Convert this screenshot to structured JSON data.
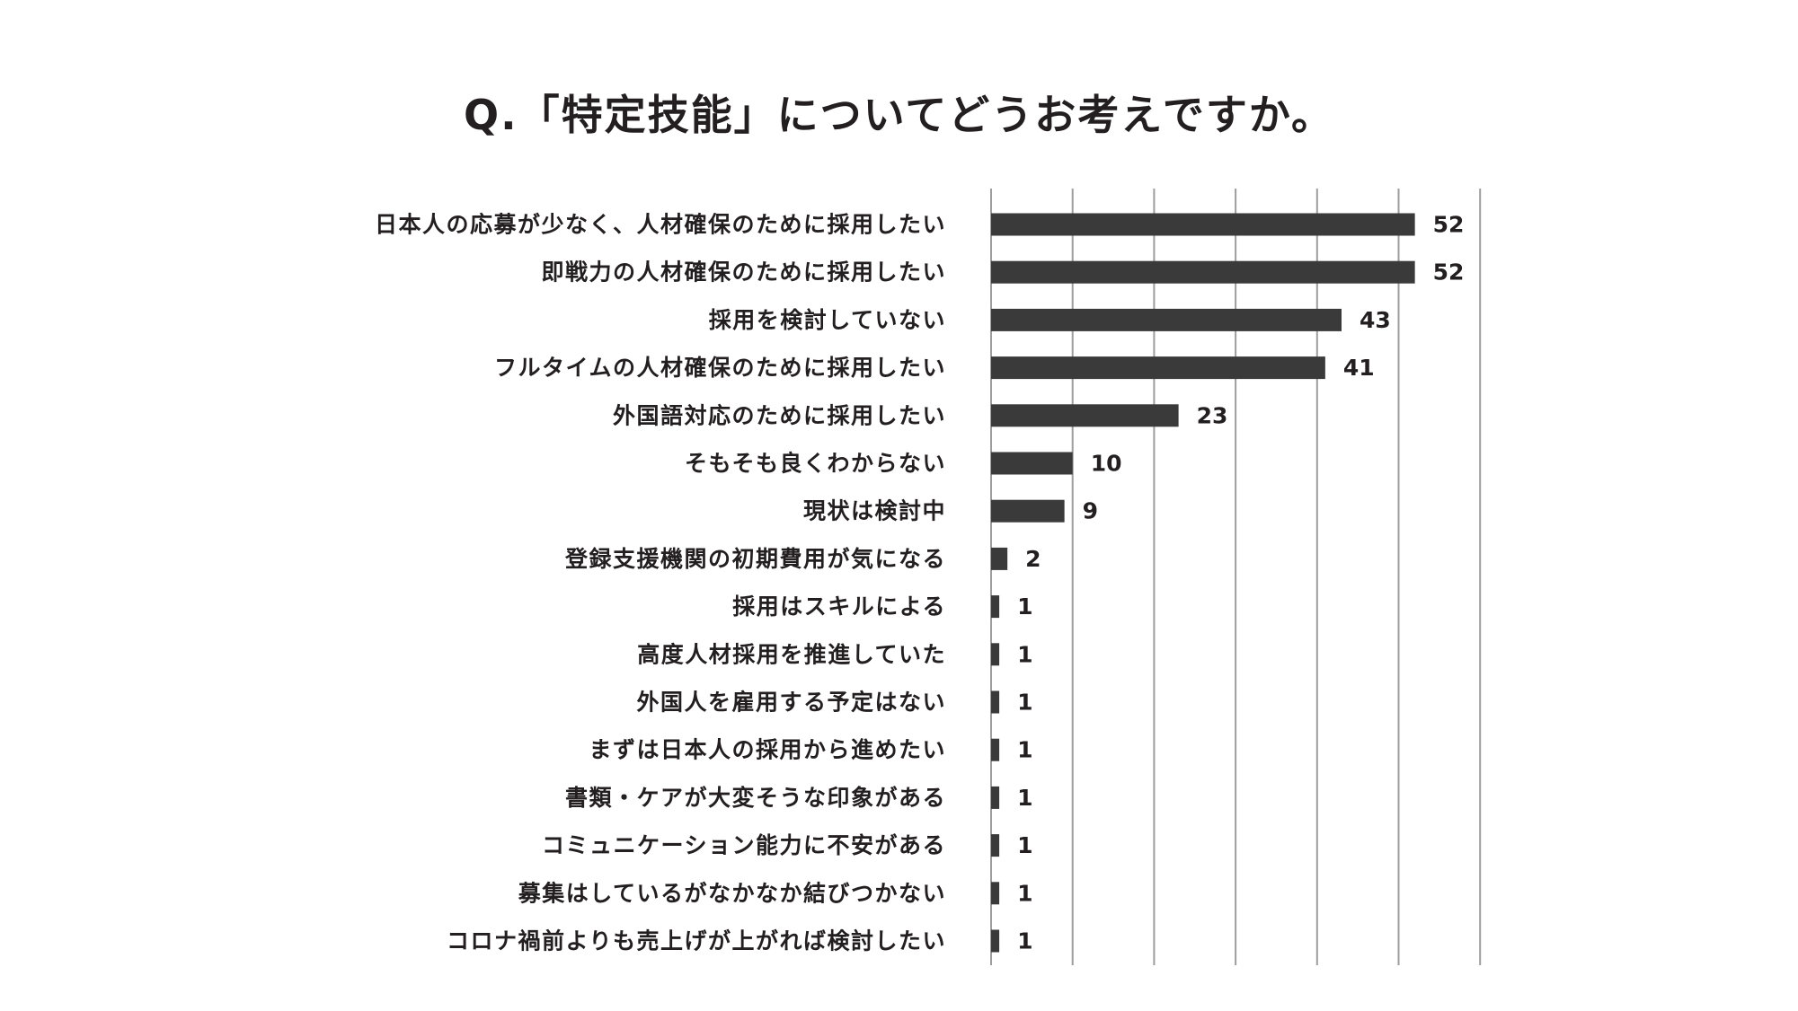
{
  "chart_data": {
    "type": "bar",
    "orientation": "horizontal",
    "title": "Q.「特定技能」についてどうお考えですか。",
    "categories": [
      "日本人の応募が少なく、人材確保のために採用したい",
      "即戦力の人材確保のために採用したい",
      "採用を検討していない",
      "フルタイムの人材確保のために採用したい",
      "外国語対応のために採用したい",
      "そもそも良くわからない",
      "現状は検討中",
      "登録支援機関の初期費用が気になる",
      "採用はスキルによる",
      "高度人材採用を推進していた",
      "外国人を雇用する予定はない",
      "まずは日本人の採用から進めたい",
      "書類・ケアが大変そうな印象がある",
      "コミュニケーション能力に不安がある",
      "募集はしているがなかなか結びつかない",
      "コロナ禍前よりも売上げが上がれば検討したい"
    ],
    "values": [
      52,
      52,
      43,
      41,
      23,
      10,
      9,
      2,
      1,
      1,
      1,
      1,
      1,
      1,
      1,
      1
    ],
    "xlim": [
      0,
      60
    ],
    "grid_step": 10,
    "grid": true,
    "legend": "none",
    "bar_color": "#3a3a3a",
    "grid_color": "#9d9d9d",
    "text_color": "#231f20"
  }
}
